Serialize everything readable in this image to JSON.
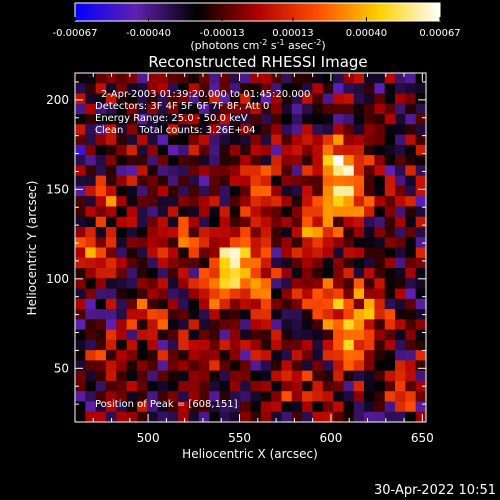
{
  "chart_data": {
    "type": "heatmap",
    "title": "Reconstructed RHESSI Image",
    "xlabel": "Heliocentric X (arcsec)",
    "ylabel": "Heliocentric Y (arcsec)",
    "xlim": [
      460,
      652
    ],
    "ylim": [
      20,
      215
    ],
    "x_ticks": [
      500,
      550,
      600,
      650
    ],
    "y_ticks": [
      50,
      100,
      150,
      200
    ],
    "x_tick_labels": [
      "500",
      "550",
      "600",
      "650"
    ],
    "y_tick_labels": [
      "50",
      "100",
      "150",
      "200"
    ],
    "grid": false,
    "colorbar": {
      "range": [
        -0.00067,
        0.00067
      ],
      "ticks": [
        -0.00067,
        -0.0004,
        -0.00013,
        0.00013,
        0.0004,
        0.00067
      ],
      "tick_labels": [
        "-0.00067",
        "-0.00040",
        "-0.00013",
        "0.00013",
        "0.00040",
        "0.00067"
      ],
      "unit_label": "(photons cm",
      "unit_exp1": "-2",
      "unit_mid": " s",
      "unit_exp2": "-1",
      "unit_mid2": " asec",
      "unit_exp3": "-2",
      "unit_close": ")",
      "colors": [
        "#0000ff",
        "#6020b0",
        "#000000",
        "#b00000",
        "#ff5000",
        "#ffd000",
        "#ffffff"
      ]
    },
    "annotations": [
      "2-Apr-2003 01:39:20.000 to 01:45:20.000",
      "Detectors: 3F 4F 5F 6F 7F 8F, Att 0",
      "Energy Range: 25.0 - 50.0 keV",
      "Clean     Total counts: 3.26E+04"
    ],
    "peak_label": "Position of Peak = [608,151]",
    "peak": [
      608,
      151
    ],
    "cells_x": 34,
    "cells_y": 34,
    "hotspots": [
      {
        "x": 608,
        "y": 151,
        "amp": 0.00067,
        "sx": 10,
        "sy": 14
      },
      {
        "x": 600,
        "y": 170,
        "amp": 0.00042,
        "sx": 8,
        "sy": 8
      },
      {
        "x": 590,
        "y": 128,
        "amp": 0.0004,
        "sx": 9,
        "sy": 10
      },
      {
        "x": 610,
        "y": 65,
        "amp": 0.00062,
        "sx": 9,
        "sy": 10
      },
      {
        "x": 622,
        "y": 85,
        "amp": 0.00045,
        "sx": 8,
        "sy": 9
      },
      {
        "x": 598,
        "y": 92,
        "amp": 0.00045,
        "sx": 10,
        "sy": 10
      },
      {
        "x": 550,
        "y": 115,
        "amp": 0.00062,
        "sx": 9,
        "sy": 12
      },
      {
        "x": 562,
        "y": 150,
        "amp": 0.0005,
        "sx": 7,
        "sy": 10
      },
      {
        "x": 540,
        "y": 95,
        "amp": 0.00045,
        "sx": 8,
        "sy": 9
      },
      {
        "x": 520,
        "y": 125,
        "amp": 0.00035,
        "sx": 8,
        "sy": 10
      },
      {
        "x": 470,
        "y": 115,
        "amp": 0.0004,
        "sx": 7,
        "sy": 9
      },
      {
        "x": 478,
        "y": 145,
        "amp": 0.0004,
        "sx": 7,
        "sy": 7
      },
      {
        "x": 560,
        "y": 90,
        "amp": 0.00035,
        "sx": 8,
        "sy": 8
      },
      {
        "x": 500,
        "y": 80,
        "amp": 0.0003,
        "sx": 8,
        "sy": 8
      },
      {
        "x": 530,
        "y": 60,
        "amp": 0.00025,
        "sx": 9,
        "sy": 9
      },
      {
        "x": 580,
        "y": 40,
        "amp": 0.0003,
        "sx": 9,
        "sy": 8
      },
      {
        "x": 640,
        "y": 40,
        "amp": 0.0004,
        "sx": 7,
        "sy": 8
      },
      {
        "x": 480,
        "y": 60,
        "amp": 0.00025,
        "sx": 8,
        "sy": 8
      }
    ],
    "background": -0.0002,
    "noise": 0.00022
  },
  "footer": {
    "timestamp": "30-Apr-2022 10:51"
  }
}
